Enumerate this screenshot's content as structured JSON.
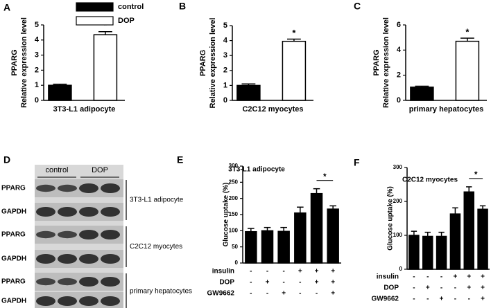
{
  "chart_data": [
    {
      "type": "bar",
      "panel_label": "A",
      "ylabel": [
        "PPARG",
        "Relative expression level"
      ],
      "xlabel": "3T3-L1 adipocyte",
      "categories": [
        null
      ],
      "legend": true,
      "series": [
        {
          "name": "control",
          "color": "#000000",
          "values": [
            1.0
          ],
          "errors": [
            0.07
          ]
        },
        {
          "name": "DOP",
          "color": "#ffffff",
          "values": [
            4.35
          ],
          "errors": [
            0.2
          ],
          "marker": "*"
        }
      ],
      "ylim": [
        0,
        5
      ],
      "yticks": [
        0,
        1,
        2,
        3,
        4,
        5
      ]
    },
    {
      "type": "bar",
      "panel_label": "B",
      "ylabel": [
        "PPARG",
        "Relative expression level"
      ],
      "xlabel": "C2C12 myocytes",
      "categories": [
        null
      ],
      "legend": false,
      "series": [
        {
          "color": "#000000",
          "values": [
            1.0
          ],
          "errors": [
            0.1
          ]
        },
        {
          "color": "#ffffff",
          "values": [
            3.95
          ],
          "errors": [
            0.15
          ],
          "marker": "*"
        }
      ],
      "ylim": [
        0,
        5
      ],
      "yticks": [
        0,
        1,
        2,
        3,
        4,
        5
      ]
    },
    {
      "type": "bar",
      "panel_label": "C",
      "ylabel": [
        "PPARG",
        "Relative expression level"
      ],
      "xlabel": "primary hepatocytes",
      "categories": [
        null
      ],
      "legend": false,
      "series": [
        {
          "color": "#000000",
          "values": [
            1.05
          ],
          "errors": [
            0.08
          ]
        },
        {
          "color": "#ffffff",
          "values": [
            4.7
          ],
          "errors": [
            0.25
          ],
          "marker": "*"
        }
      ],
      "ylim": [
        0,
        6
      ],
      "yticks": [
        0,
        2,
        4,
        6
      ]
    },
    {
      "type": "bar",
      "panel_label": "E",
      "title": "3T3-L1 adipocyte",
      "ylabel": [
        "Glucose uptake (%)"
      ],
      "categories": [
        null,
        null,
        null,
        null,
        null,
        null
      ],
      "legend": false,
      "series": [
        {
          "color": "#000000",
          "values": [
            97,
            100,
            98,
            155,
            215,
            167
          ],
          "errors": [
            10,
            10,
            12,
            18,
            15,
            10
          ]
        }
      ],
      "treatments": [
        {
          "name": "insulin",
          "signs": [
            "-",
            "-",
            "-",
            "+",
            "+",
            "+"
          ]
        },
        {
          "name": "DOP",
          "signs": [
            "-",
            "+",
            "-",
            "-",
            "+",
            "+"
          ]
        },
        {
          "name": "GW9662",
          "signs": [
            "-",
            "-",
            "+",
            "-",
            "-",
            "+"
          ]
        }
      ],
      "significance": {
        "between": [
          4,
          5
        ],
        "label": "*"
      },
      "ylim": [
        0,
        300
      ],
      "yticks": [
        0,
        50,
        100,
        150,
        200,
        250,
        300
      ]
    },
    {
      "type": "bar",
      "panel_label": "F",
      "title": "C2C12 myocytes",
      "ylabel": [
        "Glucose uptake (%)"
      ],
      "categories": [
        null,
        null,
        null,
        null,
        null,
        null
      ],
      "legend": false,
      "series": [
        {
          "color": "#000000",
          "values": [
            100,
            97,
            97,
            163,
            228,
            177
          ],
          "errors": [
            12,
            12,
            12,
            18,
            15,
            10
          ]
        }
      ],
      "treatments": [
        {
          "name": "insulin",
          "signs": [
            "-",
            "-",
            "-",
            "+",
            "+",
            "+"
          ]
        },
        {
          "name": "DOP",
          "signs": [
            "-",
            "+",
            "-",
            "-",
            "+",
            "+"
          ]
        },
        {
          "name": "GW9662",
          "signs": [
            "-",
            "-",
            "+",
            "-",
            "-",
            "+"
          ]
        }
      ],
      "significance": {
        "between": [
          4,
          5
        ],
        "label": "*"
      },
      "ylim": [
        0,
        300
      ],
      "yticks": [
        0,
        100,
        200,
        300
      ]
    }
  ],
  "blot": {
    "panel_label": "D",
    "groups": [
      "control",
      "DOP"
    ],
    "rows": [
      "PPARG",
      "GAPDH",
      "PPARG",
      "GAPDH",
      "PPARG",
      "GAPDH"
    ],
    "cell_lines": [
      "3T3-L1 adipocyte",
      "C2C12 myocytes",
      "primary hepatocytes"
    ]
  }
}
